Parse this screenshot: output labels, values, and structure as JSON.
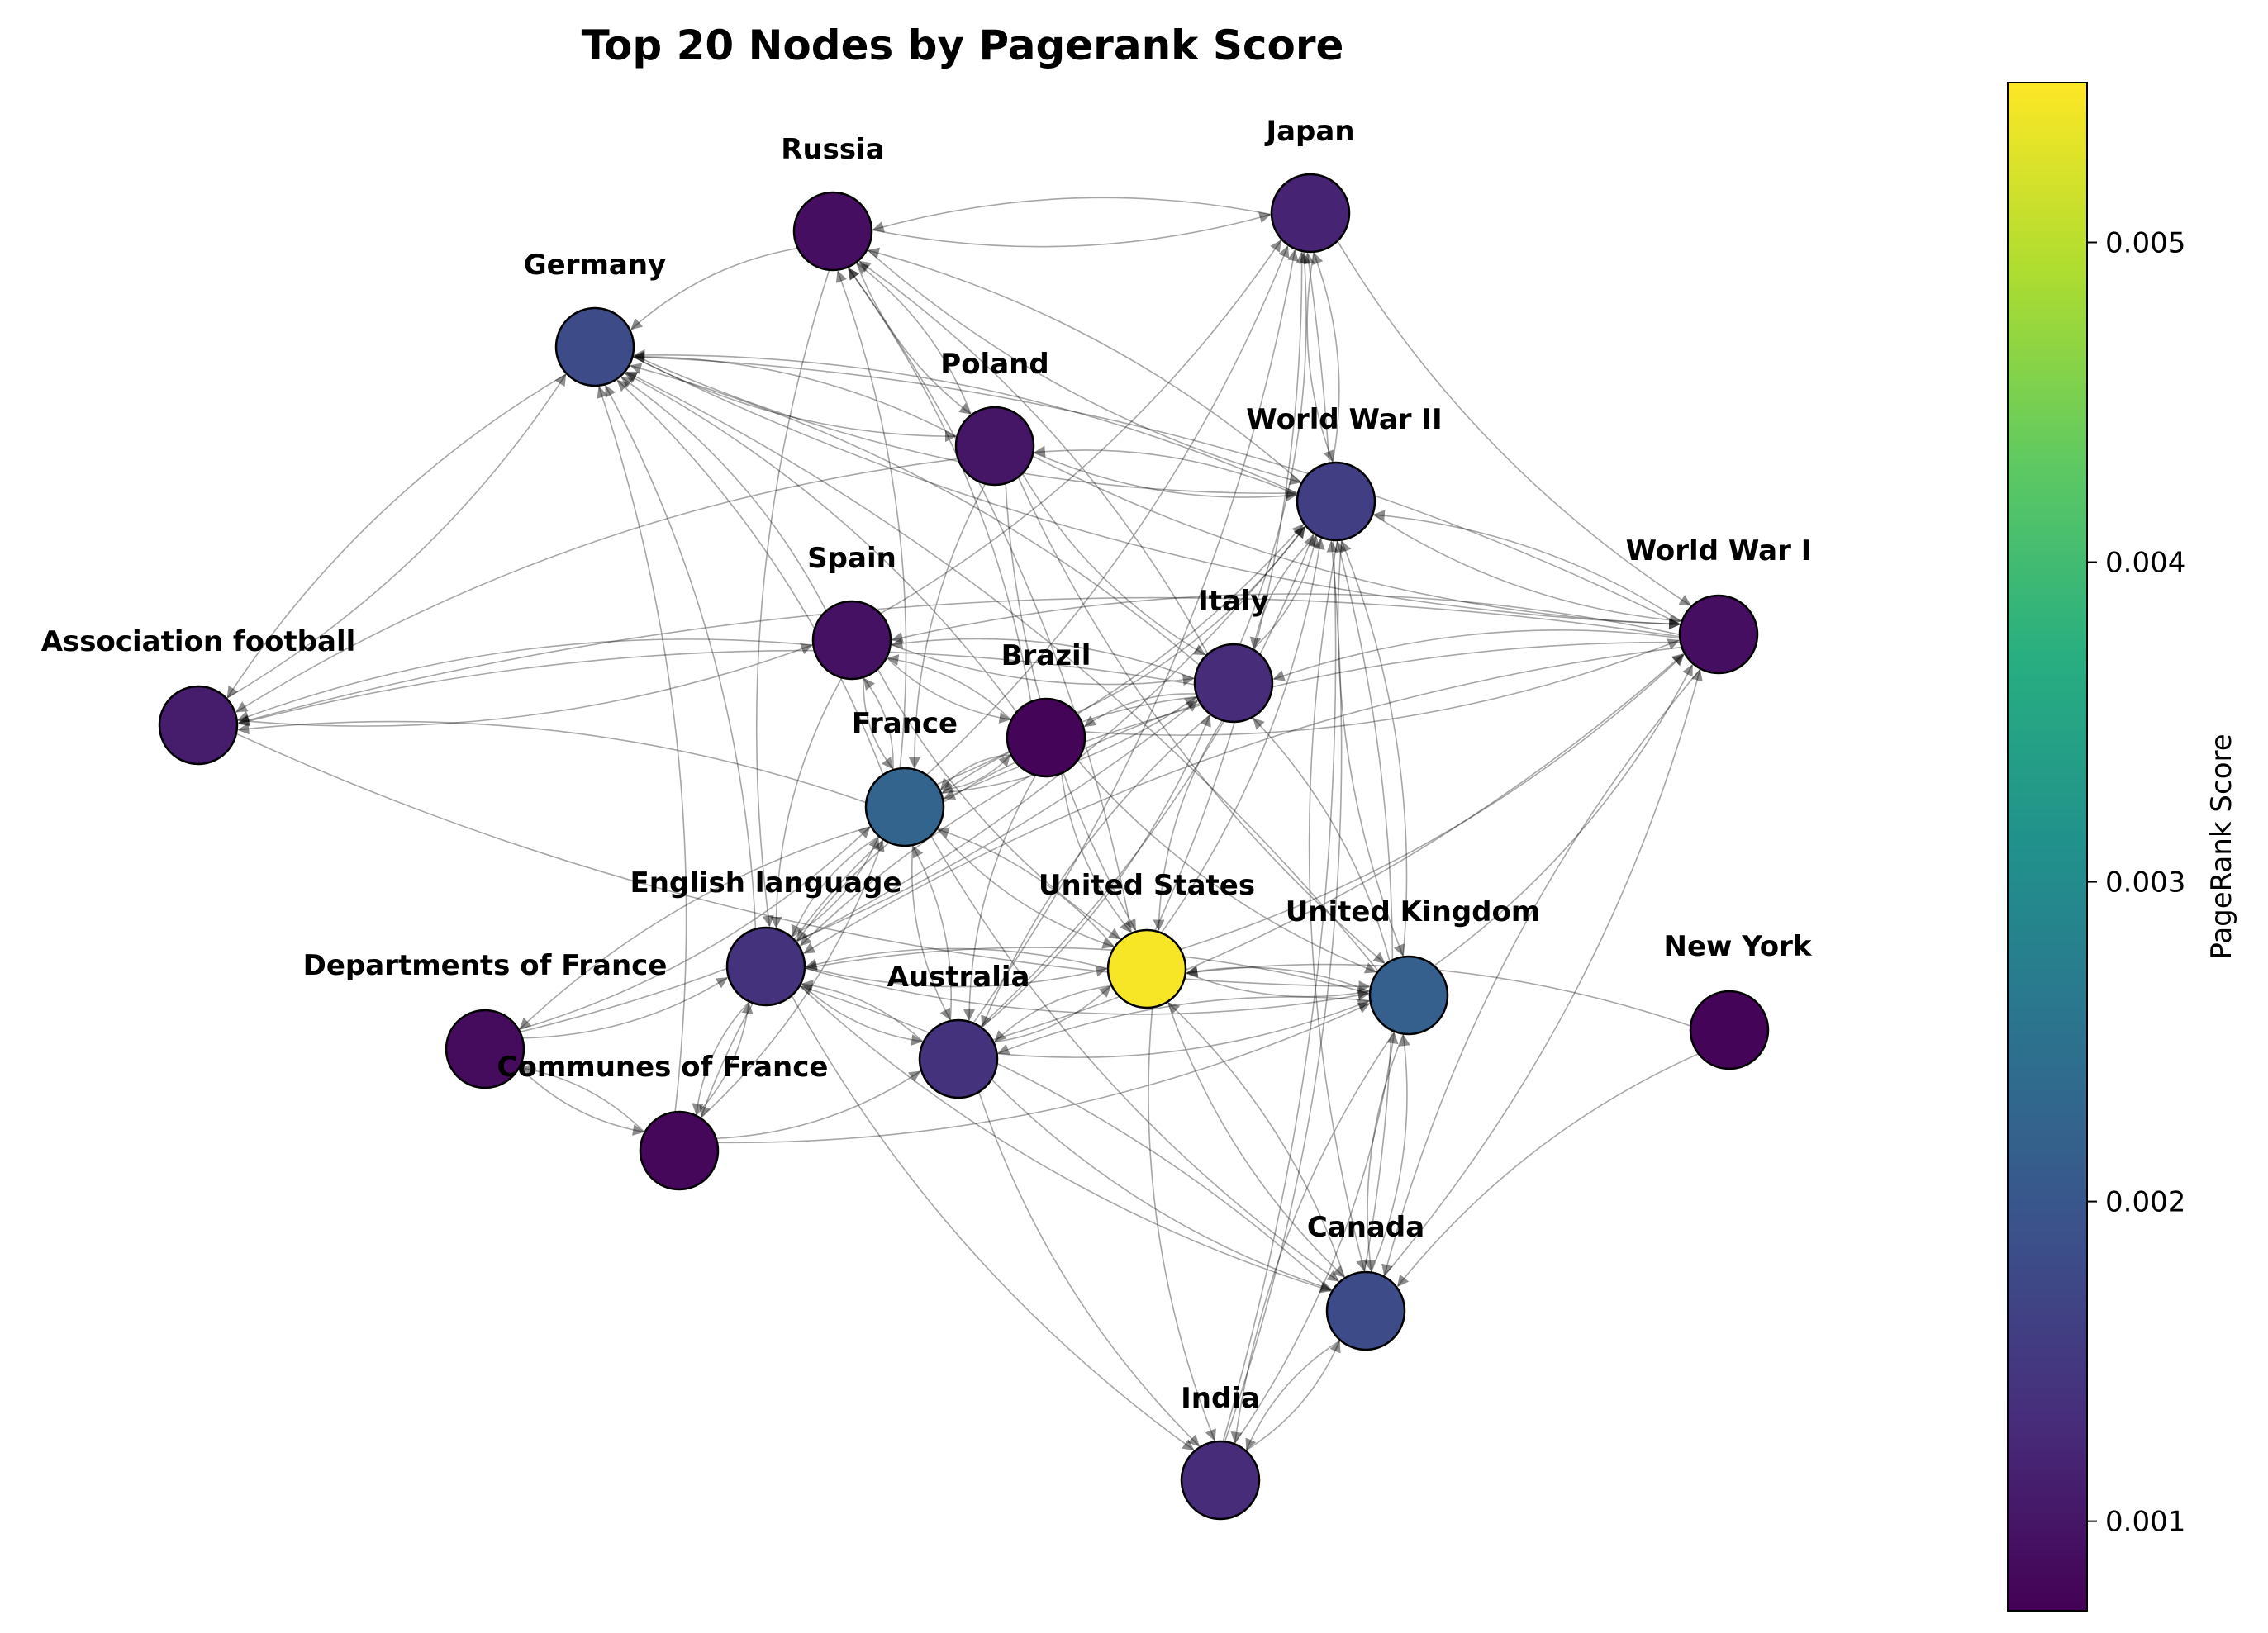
{
  "title": "Top 20 Nodes by Pagerank Score",
  "colorbar": {
    "label": "PageRank Score",
    "min": 0.00072,
    "max": 0.0055,
    "ticks": [
      "0.001",
      "0.002",
      "0.003",
      "0.004",
      "0.005"
    ],
    "tick_values": [
      0.001,
      0.002,
      0.003,
      0.004,
      0.005
    ]
  },
  "nodes": [
    {
      "id": "united-states",
      "label": "United States",
      "score": 0.00545
    },
    {
      "id": "france",
      "label": "France",
      "score": 0.00225
    },
    {
      "id": "united-kingdom",
      "label": "United Kingdom",
      "score": 0.00215
    },
    {
      "id": "germany",
      "label": "Germany",
      "score": 0.0018
    },
    {
      "id": "canada",
      "label": "Canada",
      "score": 0.0018
    },
    {
      "id": "world-war-ii",
      "label": "World War II",
      "score": 0.0016
    },
    {
      "id": "english-language",
      "label": "English language",
      "score": 0.0014
    },
    {
      "id": "australia",
      "label": "Australia",
      "score": 0.0014
    },
    {
      "id": "italy",
      "label": "Italy",
      "score": 0.0013
    },
    {
      "id": "india",
      "label": "India",
      "score": 0.0013
    },
    {
      "id": "japan",
      "label": "Japan",
      "score": 0.0012
    },
    {
      "id": "association-football",
      "label": "Association football",
      "score": 0.0011
    },
    {
      "id": "poland",
      "label": "Poland",
      "score": 0.001
    },
    {
      "id": "spain",
      "label": "Spain",
      "score": 0.00095
    },
    {
      "id": "russia",
      "label": "Russia",
      "score": 0.0009
    },
    {
      "id": "world-war-i",
      "label": "World War I",
      "score": 0.0009
    },
    {
      "id": "departments-of-france",
      "label": "Departments of France",
      "score": 0.00085
    },
    {
      "id": "communes-of-france",
      "label": "Communes of France",
      "score": 0.0008
    },
    {
      "id": "brazil",
      "label": "Brazil",
      "score": 0.00078
    },
    {
      "id": "new-york",
      "label": "New York",
      "score": 0.00078
    }
  ],
  "edges": [
    [
      "russia",
      "japan"
    ],
    [
      "japan",
      "russia"
    ],
    [
      "russia",
      "germany"
    ],
    [
      "russia",
      "poland"
    ],
    [
      "russia",
      "world-war-ii"
    ],
    [
      "russia",
      "english-language"
    ],
    [
      "poland",
      "russia"
    ],
    [
      "world-war-ii",
      "russia"
    ],
    [
      "france",
      "russia"
    ],
    [
      "united-states",
      "russia"
    ],
    [
      "italy",
      "russia"
    ],
    [
      "brazil",
      "russia"
    ],
    [
      "japan",
      "world-war-ii"
    ],
    [
      "world-war-ii",
      "japan"
    ],
    [
      "japan",
      "world-war-i"
    ],
    [
      "spain",
      "japan"
    ],
    [
      "france",
      "japan"
    ],
    [
      "united-states",
      "japan"
    ],
    [
      "australia",
      "japan"
    ],
    [
      "italy",
      "japan"
    ],
    [
      "india",
      "japan"
    ],
    [
      "germany",
      "association-football"
    ],
    [
      "association-football",
      "germany"
    ],
    [
      "germany",
      "poland"
    ],
    [
      "poland",
      "germany"
    ],
    [
      "germany",
      "world-war-ii"
    ],
    [
      "world-war-ii",
      "germany"
    ],
    [
      "germany",
      "world-war-i"
    ],
    [
      "world-war-i",
      "germany"
    ],
    [
      "spain",
      "germany"
    ],
    [
      "france",
      "germany"
    ],
    [
      "english-language",
      "germany"
    ],
    [
      "italy",
      "germany"
    ],
    [
      "communes-of-france",
      "germany"
    ],
    [
      "brazil",
      "germany"
    ],
    [
      "united-kingdom",
      "germany"
    ],
    [
      "poland",
      "world-war-ii"
    ],
    [
      "world-war-ii",
      "poland"
    ],
    [
      "poland",
      "association-football"
    ],
    [
      "poland",
      "france"
    ],
    [
      "poland",
      "united-states"
    ],
    [
      "poland",
      "world-war-i"
    ],
    [
      "poland",
      "italy"
    ],
    [
      "poland",
      "united-kingdom"
    ],
    [
      "world-war-ii",
      "world-war-i"
    ],
    [
      "world-war-i",
      "world-war-ii"
    ],
    [
      "world-war-ii",
      "italy"
    ],
    [
      "italy",
      "world-war-ii"
    ],
    [
      "world-war-ii",
      "canada"
    ],
    [
      "canada",
      "world-war-ii"
    ],
    [
      "world-war-ii",
      "united-kingdom"
    ],
    [
      "united-kingdom",
      "world-war-ii"
    ],
    [
      "france",
      "world-war-ii"
    ],
    [
      "united-states",
      "world-war-ii"
    ],
    [
      "australia",
      "world-war-ii"
    ],
    [
      "brazil",
      "world-war-ii"
    ],
    [
      "english-language",
      "world-war-ii"
    ],
    [
      "india",
      "world-war-ii"
    ],
    [
      "world-war-i",
      "association-football"
    ],
    [
      "world-war-i",
      "italy"
    ],
    [
      "world-war-i",
      "france"
    ],
    [
      "world-war-i",
      "canada"
    ],
    [
      "canada",
      "world-war-i"
    ],
    [
      "united-kingdom",
      "world-war-i"
    ],
    [
      "australia",
      "world-war-i"
    ],
    [
      "new-york",
      "canada"
    ],
    [
      "united-states",
      "world-war-i"
    ],
    [
      "world-war-i",
      "english-language"
    ],
    [
      "world-war-i",
      "spain"
    ],
    [
      "spain",
      "association-football"
    ],
    [
      "association-football",
      "spain"
    ],
    [
      "spain",
      "france"
    ],
    [
      "france",
      "spain"
    ],
    [
      "spain",
      "english-language"
    ],
    [
      "spain",
      "brazil"
    ],
    [
      "spain",
      "italy"
    ],
    [
      "spain",
      "united-states"
    ],
    [
      "brazil",
      "spain"
    ],
    [
      "italy",
      "spain"
    ],
    [
      "italy",
      "association-football"
    ],
    [
      "association-football",
      "united-kingdom"
    ],
    [
      "italy",
      "france"
    ],
    [
      "france",
      "italy"
    ],
    [
      "italy",
      "united-states"
    ],
    [
      "italy",
      "australia"
    ],
    [
      "australia",
      "italy"
    ],
    [
      "italy",
      "english-language"
    ],
    [
      "united-kingdom",
      "italy"
    ],
    [
      "italy",
      "brazil"
    ],
    [
      "brazil",
      "france"
    ],
    [
      "france",
      "brazil"
    ],
    [
      "brazil",
      "united-states"
    ],
    [
      "brazil",
      "australia"
    ],
    [
      "brazil",
      "world-war-i"
    ],
    [
      "brazil",
      "united-kingdom"
    ],
    [
      "brazil",
      "english-language"
    ],
    [
      "france",
      "english-language"
    ],
    [
      "english-language",
      "france"
    ],
    [
      "france",
      "australia"
    ],
    [
      "australia",
      "france"
    ],
    [
      "france",
      "united-states"
    ],
    [
      "united-states",
      "france"
    ],
    [
      "france",
      "departments-of-france"
    ],
    [
      "departments-of-france",
      "france"
    ],
    [
      "france",
      "communes-of-france"
    ],
    [
      "communes-of-france",
      "france"
    ],
    [
      "france",
      "canada"
    ],
    [
      "france",
      "association-football"
    ],
    [
      "english-language",
      "united-states"
    ],
    [
      "united-states",
      "english-language"
    ],
    [
      "english-language",
      "australia"
    ],
    [
      "australia",
      "english-language"
    ],
    [
      "english-language",
      "canada"
    ],
    [
      "canada",
      "english-language"
    ],
    [
      "english-language",
      "india"
    ],
    [
      "english-language",
      "united-kingdom"
    ],
    [
      "united-kingdom",
      "english-language"
    ],
    [
      "english-language",
      "communes-of-france"
    ],
    [
      "departments-of-france",
      "english-language"
    ],
    [
      "departments-of-france",
      "communes-of-france"
    ],
    [
      "communes-of-france",
      "departments-of-france"
    ],
    [
      "communes-of-france",
      "english-language"
    ],
    [
      "communes-of-france",
      "united-kingdom"
    ],
    [
      "departments-of-france",
      "italy"
    ],
    [
      "united-states",
      "united-kingdom"
    ],
    [
      "united-kingdom",
      "united-states"
    ],
    [
      "united-states",
      "canada"
    ],
    [
      "canada",
      "united-states"
    ],
    [
      "united-states",
      "india"
    ],
    [
      "united-states",
      "australia"
    ],
    [
      "australia",
      "united-states"
    ],
    [
      "new-york",
      "united-states"
    ],
    [
      "united-kingdom",
      "canada"
    ],
    [
      "canada",
      "united-kingdom"
    ],
    [
      "united-kingdom",
      "india"
    ],
    [
      "india",
      "united-kingdom"
    ],
    [
      "united-kingdom",
      "australia"
    ],
    [
      "australia",
      "united-kingdom"
    ],
    [
      "australia",
      "canada"
    ],
    [
      "australia",
      "india"
    ],
    [
      "india",
      "canada"
    ],
    [
      "canada",
      "india"
    ],
    [
      "communes-of-france",
      "australia"
    ]
  ]
}
